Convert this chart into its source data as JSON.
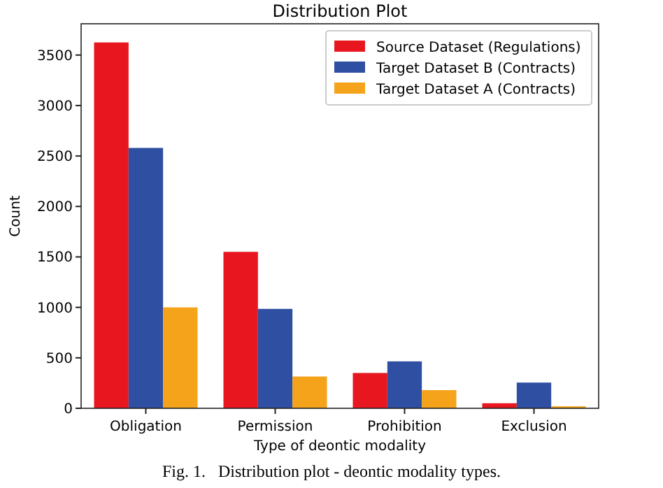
{
  "chart_data": {
    "type": "bar",
    "title": "Distribution Plot",
    "xlabel": "Type of deontic modality",
    "ylabel": "Count",
    "categories": [
      "Obligation",
      "Permission",
      "Prohibition",
      "Exclusion"
    ],
    "series": [
      {
        "name": "Source Dataset (Regulations)",
        "color": "#e8161e",
        "values": [
          3625,
          1550,
          350,
          50
        ]
      },
      {
        "name": "Target Dataset B (Contracts)",
        "color": "#2f4fa3",
        "values": [
          2580,
          985,
          465,
          255
        ]
      },
      {
        "name": "Target Dataset A (Contracts)",
        "color": "#f5a31a",
        "values": [
          1000,
          315,
          180,
          20
        ]
      }
    ],
    "ylim": [
      0,
      3810
    ],
    "yticks": [
      0,
      500,
      1000,
      1500,
      2000,
      2500,
      3000,
      3500
    ],
    "legend": "top right",
    "grid": false,
    "annotations": [
      "Fig. 1.   Distribution plot - deontic modality types."
    ]
  }
}
